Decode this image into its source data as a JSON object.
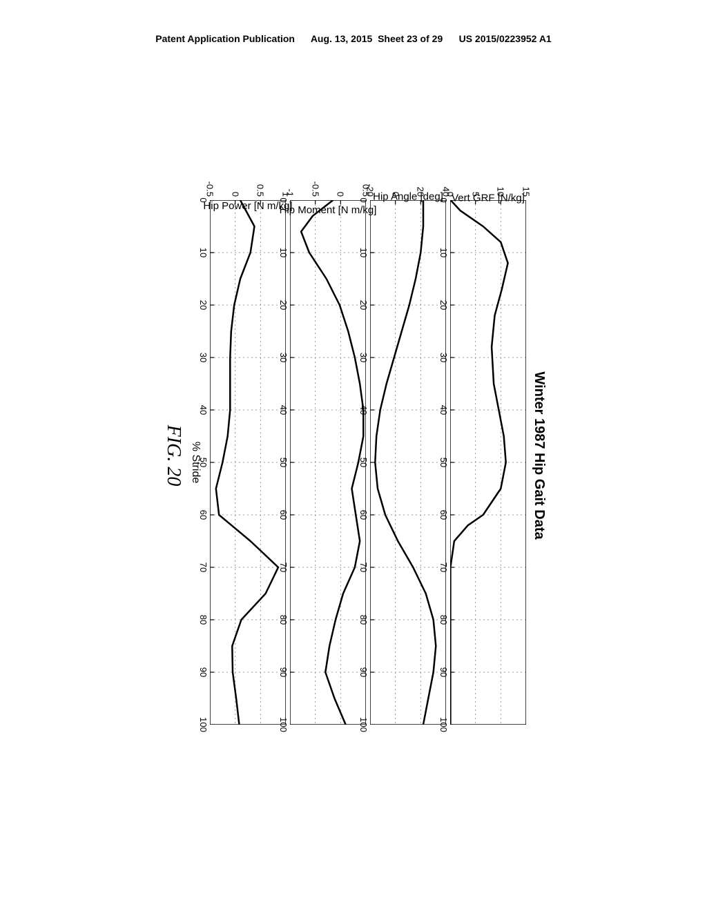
{
  "header": {
    "left": "Patent Application Publication",
    "center": "Aug. 13, 2015  Sheet 23 of 29",
    "right": "US 2015/0223952 A1"
  },
  "figure": {
    "title": "Winter 1987 Hip Gait Data",
    "caption": "FIG. 20",
    "xlabel": "% Stride",
    "x_ticks": [
      0,
      10,
      20,
      30,
      40,
      50,
      60,
      70,
      80,
      90,
      100
    ],
    "x_range": [
      0,
      100
    ],
    "line_color": "#000000",
    "line_width": 2.5,
    "grid_color": "#808080",
    "grid_dash": "2,4",
    "background": "#ffffff",
    "panels": [
      {
        "id": "vert_grf",
        "ylabel": "Vert GRF [N/kg]",
        "y_range": [
          0,
          15
        ],
        "y_ticks": [
          0,
          5,
          10,
          15
        ],
        "data_x": [
          0,
          2,
          5,
          8,
          12,
          17,
          22,
          28,
          35,
          40,
          45,
          50,
          55,
          60,
          62,
          65,
          70,
          75,
          80,
          85,
          90,
          95,
          100
        ],
        "data_y": [
          0.1,
          2.0,
          6.5,
          10.0,
          11.4,
          10.2,
          8.8,
          8.2,
          8.6,
          9.6,
          10.6,
          11.0,
          10.0,
          6.5,
          3.5,
          0.8,
          0.05,
          0.05,
          0.05,
          0.05,
          0.05,
          0.05,
          0.05
        ]
      },
      {
        "id": "hip_angle",
        "ylabel": "Hip Angle [deg]",
        "y_range": [
          -20,
          40
        ],
        "y_ticks": [
          -20,
          0,
          20,
          40
        ],
        "data_x": [
          0,
          5,
          10,
          15,
          20,
          25,
          30,
          35,
          40,
          45,
          50,
          55,
          60,
          65,
          70,
          75,
          80,
          85,
          90,
          95,
          100
        ],
        "data_y": [
          22,
          22,
          20,
          16,
          11,
          5,
          -1,
          -7,
          -12,
          -15,
          -16,
          -14,
          -8,
          2,
          14,
          24,
          30,
          32,
          30,
          26,
          22
        ]
      },
      {
        "id": "hip_moment",
        "ylabel": "Hip Moment [N m/kg]",
        "y_range": [
          -1,
          0.5
        ],
        "y_ticks": [
          -1,
          -0.5,
          0,
          0.5
        ],
        "data_x": [
          0,
          3,
          6,
          10,
          15,
          20,
          25,
          30,
          35,
          40,
          45,
          50,
          55,
          60,
          65,
          70,
          75,
          80,
          85,
          90,
          95,
          100
        ],
        "data_y": [
          -0.15,
          -0.55,
          -0.78,
          -0.62,
          -0.28,
          -0.02,
          0.15,
          0.28,
          0.38,
          0.45,
          0.45,
          0.35,
          0.22,
          0.3,
          0.38,
          0.28,
          0.05,
          -0.1,
          -0.22,
          -0.3,
          -0.12,
          0.1
        ]
      },
      {
        "id": "hip_power",
        "ylabel": "Hip Power [N m/kg]",
        "y_range": [
          -0.5,
          1
        ],
        "y_ticks": [
          -0.5,
          0,
          0.5,
          1
        ],
        "data_x": [
          0,
          5,
          10,
          15,
          20,
          25,
          30,
          35,
          40,
          45,
          50,
          55,
          60,
          65,
          70,
          75,
          80,
          85,
          90,
          95,
          100
        ],
        "data_y": [
          0.1,
          0.38,
          0.3,
          0.1,
          -0.02,
          -0.08,
          -0.1,
          -0.1,
          -0.1,
          -0.15,
          -0.25,
          -0.38,
          -0.32,
          0.3,
          0.85,
          0.6,
          0.12,
          -0.06,
          -0.05,
          0.02,
          0.08
        ]
      }
    ]
  }
}
